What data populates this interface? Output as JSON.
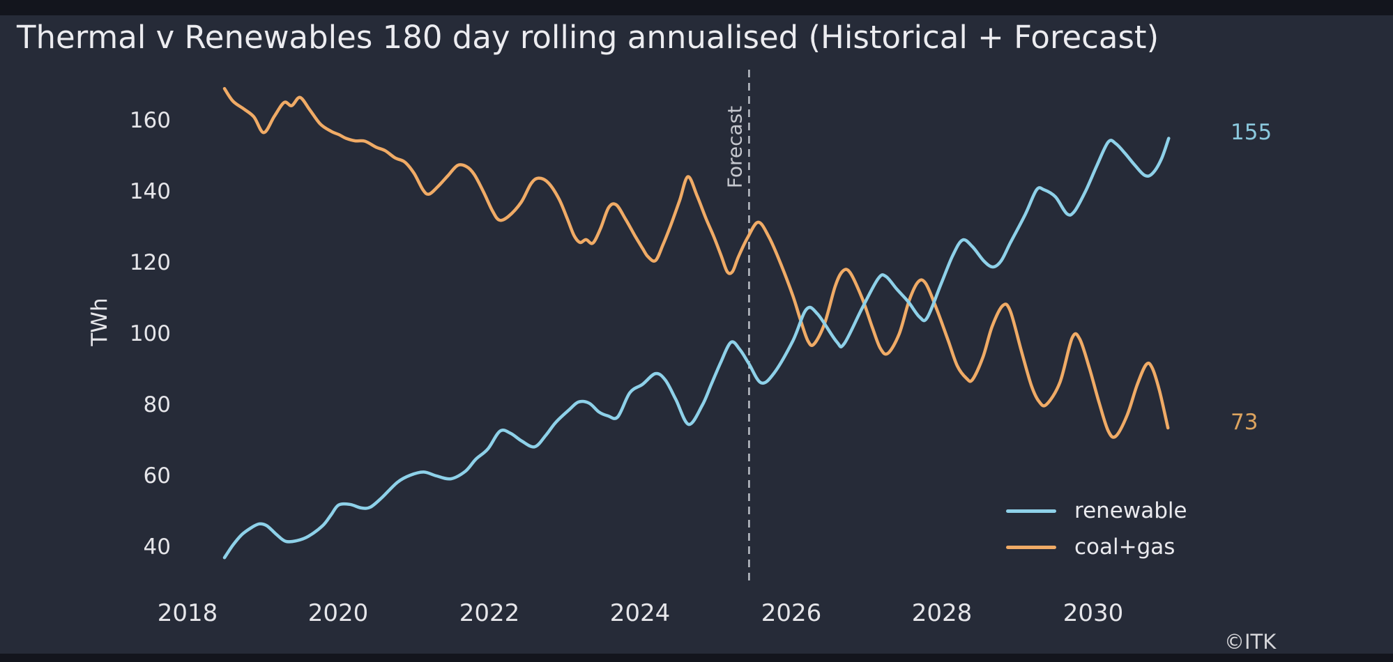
{
  "title": "Thermal v Renewables 180 day rolling annualised (Historical + Forecast)",
  "credit": "©ITK",
  "forecast_label": "Forecast",
  "y_axis": {
    "label": "TWh",
    "ticks": [
      "160",
      "140",
      "120",
      "100",
      "80",
      "60",
      "40"
    ]
  },
  "x_axis": {
    "ticks": [
      "2018",
      "2020",
      "2022",
      "2024",
      "2026",
      "2028",
      "2030"
    ]
  },
  "end_labels": {
    "renewable": "155",
    "coal_gas": "73"
  },
  "legend": {
    "renewable_label": "renewable",
    "coal_gas_label": "coal+gas"
  },
  "colors": {
    "background": "#262b38",
    "edge_band": "#13151d",
    "renewable": "#8ed1e9",
    "coal_gas": "#f0ab66",
    "forecast_divider": "#bcc0c8",
    "text": "#ececf0"
  },
  "chart_data": {
    "type": "line",
    "title": "Thermal v Renewables 180 day rolling annualised (Historical + Forecast)",
    "xlabel": "",
    "ylabel": "TWh",
    "xlim": [
      2018.1,
      2031.4
    ],
    "ylim": [
      30,
      175
    ],
    "grid": false,
    "legend_position": "lower right",
    "x_units": "year (decimal)",
    "forecast_boundary": 2025.44,
    "series": [
      {
        "name": "renewable",
        "color": "#8ed1e9",
        "end_value": 155,
        "points": [
          [
            2018.49,
            37
          ],
          [
            2018.6,
            40.5
          ],
          [
            2018.72,
            43.5
          ],
          [
            2018.85,
            45.5
          ],
          [
            2018.95,
            46.5
          ],
          [
            2019.05,
            46
          ],
          [
            2019.18,
            43.5
          ],
          [
            2019.3,
            41.6
          ],
          [
            2019.45,
            41.8
          ],
          [
            2019.6,
            43
          ],
          [
            2019.79,
            46
          ],
          [
            2019.9,
            49
          ],
          [
            2020,
            51.8
          ],
          [
            2020.15,
            52
          ],
          [
            2020.3,
            51
          ],
          [
            2020.42,
            51.2
          ],
          [
            2020.57,
            53.8
          ],
          [
            2020.78,
            58.2
          ],
          [
            2020.95,
            60.2
          ],
          [
            2021.13,
            61.1
          ],
          [
            2021.3,
            60
          ],
          [
            2021.49,
            59.2
          ],
          [
            2021.68,
            61.3
          ],
          [
            2021.82,
            64.7
          ],
          [
            2021.98,
            67.6
          ],
          [
            2022.14,
            72.6
          ],
          [
            2022.28,
            72
          ],
          [
            2022.43,
            69.8
          ],
          [
            2022.6,
            68.2
          ],
          [
            2022.75,
            71.5
          ],
          [
            2022.88,
            75.1
          ],
          [
            2023.05,
            78.5
          ],
          [
            2023.18,
            80.8
          ],
          [
            2023.32,
            80.5
          ],
          [
            2023.45,
            78
          ],
          [
            2023.57,
            76.9
          ],
          [
            2023.7,
            76.6
          ],
          [
            2023.86,
            83.4
          ],
          [
            2024.03,
            85.8
          ],
          [
            2024.2,
            88.8
          ],
          [
            2024.33,
            87
          ],
          [
            2024.47,
            81.5
          ],
          [
            2024.64,
            74.5
          ],
          [
            2024.82,
            79.9
          ],
          [
            2024.94,
            85.8
          ],
          [
            2025.06,
            91.7
          ],
          [
            2025.2,
            97.6
          ],
          [
            2025.32,
            95.5
          ],
          [
            2025.44,
            91.5
          ],
          [
            2025.6,
            86.2
          ],
          [
            2025.77,
            88.9
          ],
          [
            2026.02,
            98
          ],
          [
            2026.2,
            106.9
          ],
          [
            2026.35,
            105.5
          ],
          [
            2026.6,
            97.8
          ],
          [
            2026.7,
            97.2
          ],
          [
            2026.94,
            107.3
          ],
          [
            2027.15,
            115.5
          ],
          [
            2027.25,
            116.2
          ],
          [
            2027.4,
            112.5
          ],
          [
            2027.55,
            109
          ],
          [
            2027.7,
            104.7
          ],
          [
            2027.8,
            104.5
          ],
          [
            2027.98,
            113.8
          ],
          [
            2028.14,
            122.1
          ],
          [
            2028.27,
            126.4
          ],
          [
            2028.4,
            124.5
          ],
          [
            2028.55,
            120.5
          ],
          [
            2028.67,
            118.8
          ],
          [
            2028.78,
            120.5
          ],
          [
            2028.9,
            125.5
          ],
          [
            2029.1,
            133.6
          ],
          [
            2029.25,
            140.5
          ],
          [
            2029.35,
            140.5
          ],
          [
            2029.5,
            138.5
          ],
          [
            2029.65,
            133.8
          ],
          [
            2029.75,
            134.4
          ],
          [
            2029.9,
            140.2
          ],
          [
            2030.05,
            147.4
          ],
          [
            2030.2,
            154
          ],
          [
            2030.3,
            153.5
          ],
          [
            2030.42,
            150.8
          ],
          [
            2030.55,
            147.5
          ],
          [
            2030.68,
            144.6
          ],
          [
            2030.78,
            145
          ],
          [
            2030.9,
            149
          ],
          [
            2031,
            155
          ]
        ]
      },
      {
        "name": "coal+gas",
        "color": "#f0ab66",
        "end_value": 73,
        "points": [
          [
            2018.49,
            169
          ],
          [
            2018.6,
            165.5
          ],
          [
            2018.75,
            163.2
          ],
          [
            2018.88,
            161
          ],
          [
            2019.01,
            156.6
          ],
          [
            2019.15,
            161.2
          ],
          [
            2019.28,
            165.1
          ],
          [
            2019.38,
            164.2
          ],
          [
            2019.49,
            166.5
          ],
          [
            2019.62,
            163
          ],
          [
            2019.76,
            159
          ],
          [
            2019.9,
            157
          ],
          [
            2020.01,
            156
          ],
          [
            2020.1,
            155
          ],
          [
            2020.22,
            154.3
          ],
          [
            2020.35,
            154.2
          ],
          [
            2020.5,
            152.5
          ],
          [
            2020.62,
            151.5
          ],
          [
            2020.75,
            149.5
          ],
          [
            2020.88,
            148.3
          ],
          [
            2021,
            145.2
          ],
          [
            2021.12,
            140.5
          ],
          [
            2021.2,
            139.3
          ],
          [
            2021.32,
            141.5
          ],
          [
            2021.45,
            144.5
          ],
          [
            2021.58,
            147.4
          ],
          [
            2021.7,
            147
          ],
          [
            2021.8,
            144.8
          ],
          [
            2021.92,
            140
          ],
          [
            2022.04,
            134.6
          ],
          [
            2022.13,
            132
          ],
          [
            2022.25,
            133
          ],
          [
            2022.42,
            137
          ],
          [
            2022.55,
            142.2
          ],
          [
            2022.65,
            143.8
          ],
          [
            2022.78,
            142.5
          ],
          [
            2022.92,
            138
          ],
          [
            2023.03,
            132.5
          ],
          [
            2023.12,
            127.7
          ],
          [
            2023.2,
            125.7
          ],
          [
            2023.28,
            126.5
          ],
          [
            2023.37,
            125.5
          ],
          [
            2023.47,
            129.5
          ],
          [
            2023.58,
            135.5
          ],
          [
            2023.68,
            136.3
          ],
          [
            2023.8,
            132.4
          ],
          [
            2023.93,
            127.5
          ],
          [
            2024.03,
            124
          ],
          [
            2024.1,
            121.7
          ],
          [
            2024.2,
            120.6
          ],
          [
            2024.3,
            125.1
          ],
          [
            2024.4,
            130.4
          ],
          [
            2024.52,
            137.5
          ],
          [
            2024.63,
            144.2
          ],
          [
            2024.75,
            138.9
          ],
          [
            2024.87,
            132.4
          ],
          [
            2024.97,
            127.5
          ],
          [
            2025.07,
            122
          ],
          [
            2025.15,
            117.5
          ],
          [
            2025.22,
            117.5
          ],
          [
            2025.3,
            121.7
          ],
          [
            2025.42,
            127
          ],
          [
            2025.56,
            131.4
          ],
          [
            2025.7,
            127.4
          ],
          [
            2025.86,
            119.7
          ],
          [
            2026.02,
            110.7
          ],
          [
            2026.12,
            104
          ],
          [
            2026.22,
            98
          ],
          [
            2026.3,
            97.1
          ],
          [
            2026.44,
            102.8
          ],
          [
            2026.58,
            113.3
          ],
          [
            2026.68,
            117.6
          ],
          [
            2026.78,
            117.2
          ],
          [
            2026.94,
            109.9
          ],
          [
            2027.07,
            102
          ],
          [
            2027.18,
            95.9
          ],
          [
            2027.28,
            94.5
          ],
          [
            2027.43,
            100
          ],
          [
            2027.56,
            109.3
          ],
          [
            2027.68,
            114.6
          ],
          [
            2027.78,
            114.2
          ],
          [
            2027.92,
            107.3
          ],
          [
            2028.08,
            98
          ],
          [
            2028.2,
            90.9
          ],
          [
            2028.32,
            87.5
          ],
          [
            2028.4,
            87.1
          ],
          [
            2028.54,
            93.5
          ],
          [
            2028.66,
            102
          ],
          [
            2028.8,
            107.9
          ],
          [
            2028.9,
            106.5
          ],
          [
            2029.05,
            95
          ],
          [
            2029.18,
            85.5
          ],
          [
            2029.28,
            81
          ],
          [
            2029.38,
            80.1
          ],
          [
            2029.56,
            86.4
          ],
          [
            2029.72,
            98.8
          ],
          [
            2029.82,
            98.6
          ],
          [
            2029.95,
            90.3
          ],
          [
            2030.08,
            80.5
          ],
          [
            2030.2,
            72.6
          ],
          [
            2030.3,
            71.2
          ],
          [
            2030.45,
            77.1
          ],
          [
            2030.58,
            85.5
          ],
          [
            2030.7,
            91.3
          ],
          [
            2030.78,
            90.5
          ],
          [
            2030.88,
            83.8
          ],
          [
            2030.99,
            73.5
          ]
        ]
      }
    ]
  }
}
